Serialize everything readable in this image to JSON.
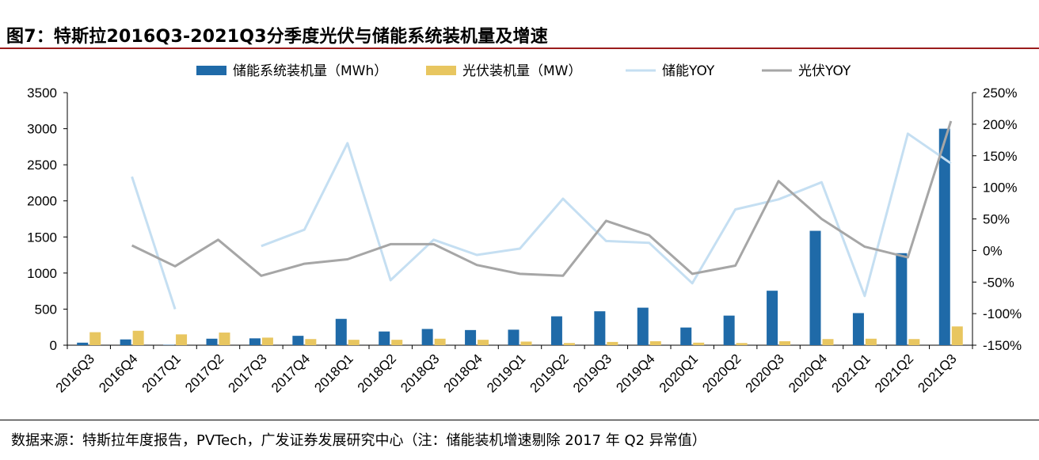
{
  "header": {
    "title": "图7：特斯拉2016Q3-2021Q3分季度光伏与储能系统装机量及增速"
  },
  "footer": {
    "source": "数据来源：特斯拉年度报告，PVTech，广发证券发展研究中心（注：储能装机增速剔除 2017 年 Q2 异常值）"
  },
  "colors": {
    "storage_bar": "#1f6aa8",
    "pv_bar": "#e8c660",
    "storage_yoy": "#c5dff2",
    "pv_yoy": "#a6a6a6"
  },
  "chart_data": {
    "type": "bar+line",
    "title": "特斯拉2016Q3-2021Q3分季度光伏与储能系统装机量及增速",
    "categories": [
      "2016Q3",
      "2016Q4",
      "2017Q1",
      "2017Q2",
      "2017Q3",
      "2017Q4",
      "2018Q1",
      "2018Q2",
      "2018Q3",
      "2018Q4",
      "2019Q1",
      "2019Q2",
      "2019Q3",
      "2019Q4",
      "2020Q1",
      "2020Q2",
      "2020Q3",
      "2020Q4",
      "2021Q1",
      "2021Q2",
      "2021Q3"
    ],
    "left_axis": {
      "min": 0,
      "max": 3500,
      "ticks": [
        "0",
        "500",
        "1000",
        "1500",
        "2000",
        "2500",
        "3000",
        "3500"
      ]
    },
    "right_axis": {
      "min": -150,
      "max": 250,
      "ticks": [
        "-150%",
        "-100%",
        "-50%",
        "0%",
        "50%",
        "100%",
        "150%",
        "200%",
        "250%"
      ]
    },
    "legend": [
      {
        "name": "储能系统装机量（MWh）",
        "kind": "bar",
        "color": "#1f6aa8"
      },
      {
        "name": "光伏装机量（MW）",
        "kind": "bar",
        "color": "#e8c660"
      },
      {
        "name": "储能YOY",
        "kind": "line",
        "color": "#c5dff2"
      },
      {
        "name": "光伏YOY",
        "kind": "line",
        "color": "#a6a6a6"
      }
    ],
    "series": [
      {
        "name": "储能系统装机量（MWh）",
        "type": "bar",
        "axis": "left",
        "values": [
          35,
          80,
          5,
          90,
          95,
          130,
          365,
          190,
          225,
          210,
          215,
          400,
          470,
          520,
          245,
          410,
          755,
          1585,
          445,
          1275,
          3000
        ]
      },
      {
        "name": "光伏装机量（MW）",
        "type": "bar",
        "axis": "left",
        "values": [
          180,
          200,
          150,
          175,
          105,
          85,
          75,
          75,
          90,
          75,
          50,
          30,
          45,
          55,
          35,
          30,
          55,
          85,
          90,
          85,
          260
        ]
      },
      {
        "name": "储能YOY",
        "type": "line",
        "axis": "right",
        "values": [
          null,
          117,
          -93,
          null,
          7,
          33,
          170,
          -47,
          17,
          -7,
          3,
          82,
          15,
          12,
          -52,
          65,
          81,
          108,
          -72,
          185,
          138
        ]
      },
      {
        "name": "光伏YOY",
        "type": "line",
        "axis": "right",
        "values": [
          null,
          8,
          -25,
          17,
          -40,
          -21,
          -14,
          10,
          10,
          -23,
          -37,
          -40,
          47,
          24,
          -37,
          -24,
          110,
          50,
          6,
          -11,
          205
        ]
      }
    ]
  }
}
